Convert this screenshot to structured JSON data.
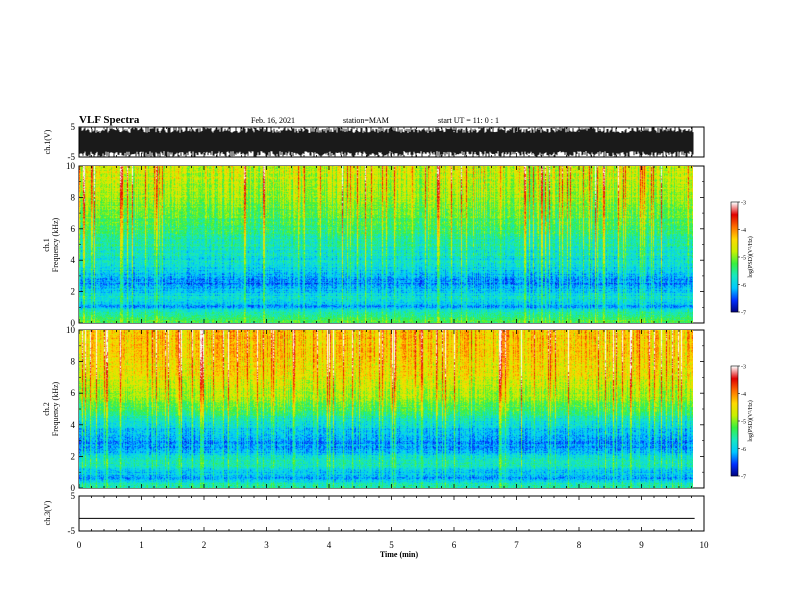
{
  "header": {
    "title": "VLF Spectra",
    "date": "Feb. 16, 2021",
    "station": "station=MAM",
    "start": "start  UT =   11: 0  : 1"
  },
  "chart_data": [
    {
      "type": "line",
      "name": "ch1-waveform",
      "ylabel": "ch.1(V)",
      "ylim": [
        -5,
        5
      ],
      "yticks": [
        "5",
        "-5"
      ],
      "xlim": [
        0,
        10
      ],
      "waveform_amplitude": "clipped at ±5 V (saturated throughout)"
    },
    {
      "type": "heatmap",
      "name": "ch1-spectrogram",
      "ylabel_line1": "ch.1",
      "ylabel_line2": "Frequency  (kHz)",
      "ylim": [
        0,
        10
      ],
      "yticks": [
        "0",
        "2",
        "4",
        "6",
        "8",
        "10"
      ],
      "xlim": [
        0,
        9.85
      ],
      "colorbar": {
        "label": "log(PSD)(V²/Hz)",
        "range": [
          -7,
          -3
        ],
        "ticks": [
          "-3",
          "-4",
          "-5",
          "-6",
          "-7"
        ],
        "colors": [
          "#00007a",
          "#0030ff",
          "#00c8ff",
          "#18e8c0",
          "#38f040",
          "#c8f000",
          "#ffd800",
          "#ff7000",
          "#e00000",
          "#ffffff"
        ]
      },
      "log_psd_profile": [
        {
          "freq_khz": 0.2,
          "value": -5.3
        },
        {
          "freq_khz": 0.6,
          "value": -5.6
        },
        {
          "freq_khz": 1.0,
          "value": -6.2
        },
        {
          "freq_khz": 1.6,
          "value": -5.8
        },
        {
          "freq_khz": 2.5,
          "value": -6.3
        },
        {
          "freq_khz": 3.5,
          "value": -5.9
        },
        {
          "freq_khz": 4.5,
          "value": -5.7
        },
        {
          "freq_khz": 5.5,
          "value": -5.5
        },
        {
          "freq_khz": 6.5,
          "value": -5.25
        },
        {
          "freq_khz": 7.5,
          "value": -5.0
        },
        {
          "freq_khz": 8.5,
          "value": -4.8
        },
        {
          "freq_khz": 9.5,
          "value": -4.7
        }
      ]
    },
    {
      "type": "heatmap",
      "name": "ch2-spectrogram",
      "ylabel_line1": "ch.2",
      "ylabel_line2": "Frequency  (kHz)",
      "ylim": [
        0,
        10
      ],
      "yticks": [
        "0",
        "2",
        "4",
        "6",
        "8",
        "10"
      ],
      "xlim": [
        0,
        9.85
      ],
      "colorbar": {
        "label": "log(PSD)(V²/Hz)",
        "range": [
          -7,
          -3
        ],
        "ticks": [
          "-3",
          "-4",
          "-5",
          "-6",
          "-7"
        ],
        "colors": [
          "#00007a",
          "#0030ff",
          "#00c8ff",
          "#18e8c0",
          "#38f040",
          "#c8f000",
          "#ffd800",
          "#ff7000",
          "#e00000",
          "#ffffff"
        ]
      },
      "log_psd_profile": [
        {
          "freq_khz": 0.2,
          "value": -5.6
        },
        {
          "freq_khz": 0.6,
          "value": -6.2
        },
        {
          "freq_khz": 1.0,
          "value": -6.0
        },
        {
          "freq_khz": 1.6,
          "value": -5.6
        },
        {
          "freq_khz": 2.5,
          "value": -6.3
        },
        {
          "freq_khz": 3.5,
          "value": -6.1
        },
        {
          "freq_khz": 4.5,
          "value": -5.6
        },
        {
          "freq_khz": 5.5,
          "value": -5.0
        },
        {
          "freq_khz": 6.5,
          "value": -4.7
        },
        {
          "freq_khz": 7.5,
          "value": -4.5
        },
        {
          "freq_khz": 8.5,
          "value": -4.35
        },
        {
          "freq_khz": 9.5,
          "value": -4.3
        }
      ]
    },
    {
      "type": "line",
      "name": "ch3-waveform",
      "ylabel": "ch.3(V)",
      "ylim": [
        -5,
        5
      ],
      "yticks": [
        "5",
        "-5"
      ],
      "xlim": [
        0,
        10
      ],
      "x": [
        0,
        9.85
      ],
      "y": [
        -1.4,
        -1.4
      ]
    }
  ],
  "xaxis": {
    "label": "Time  (min)",
    "ticks": [
      "0",
      "1",
      "2",
      "3",
      "4",
      "5",
      "6",
      "7",
      "8",
      "9",
      "10"
    ],
    "range": [
      0,
      10
    ]
  },
  "colors": {
    "frame": "#000000",
    "background": "#ffffff"
  }
}
